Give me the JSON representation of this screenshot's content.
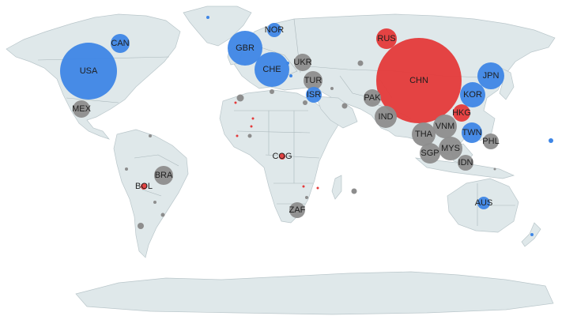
{
  "colors": {
    "land": "#dfe8ea",
    "ocean": "#ffffff",
    "blue": "#3e86e6",
    "red": "#e43a3a",
    "gray": "#8d8d8d"
  },
  "bubbles": [
    {
      "code": "CHN",
      "group": "red",
      "label": "CHN"
    },
    {
      "code": "USA",
      "group": "blue",
      "label": "USA"
    },
    {
      "code": "GBR",
      "group": "blue",
      "label": "GBR"
    },
    {
      "code": "CHE",
      "group": "blue",
      "label": "CHE"
    },
    {
      "code": "CAN",
      "group": "blue",
      "label": "CAN"
    },
    {
      "code": "NOR",
      "group": "blue",
      "label": "NOR"
    },
    {
      "code": "RUS",
      "group": "red",
      "label": "RUS"
    },
    {
      "code": "UKR",
      "group": "gray",
      "label": "UKR"
    },
    {
      "code": "TUR",
      "group": "gray",
      "label": "TUR"
    },
    {
      "code": "ISR",
      "group": "blue",
      "label": "ISR"
    },
    {
      "code": "PAK",
      "group": "gray",
      "label": "PAK"
    },
    {
      "code": "IND",
      "group": "gray",
      "label": "IND"
    },
    {
      "code": "JPN",
      "group": "blue",
      "label": "JPN"
    },
    {
      "code": "KOR",
      "group": "blue",
      "label": "KOR"
    },
    {
      "code": "HKG",
      "group": "red",
      "label": "HKG"
    },
    {
      "code": "TWN",
      "group": "blue",
      "label": "TWN"
    },
    {
      "code": "VNM",
      "group": "gray",
      "label": "VNM"
    },
    {
      "code": "THA",
      "group": "gray",
      "label": "THA"
    },
    {
      "code": "PHL",
      "group": "gray",
      "label": "PHL"
    },
    {
      "code": "MYS",
      "group": "gray",
      "label": "MYS"
    },
    {
      "code": "SGP",
      "group": "gray",
      "label": "SGP"
    },
    {
      "code": "IDN",
      "group": "gray",
      "label": "IDN"
    },
    {
      "code": "AUS",
      "group": "blue",
      "label": "AUS"
    },
    {
      "code": "MEX",
      "group": "gray",
      "label": "MEX"
    },
    {
      "code": "BRA",
      "group": "gray",
      "label": "BRA"
    },
    {
      "code": "BOL",
      "group": "red",
      "label": "BOL"
    },
    {
      "code": "COG",
      "group": "red",
      "label": "COG"
    },
    {
      "code": "ZAF",
      "group": "gray",
      "label": "ZAF"
    }
  ]
}
